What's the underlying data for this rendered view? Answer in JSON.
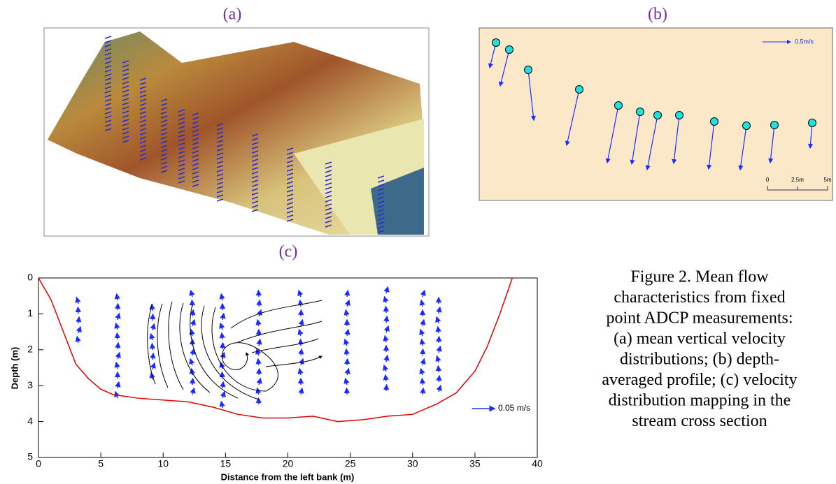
{
  "panels": {
    "a": {
      "label": "(a)"
    },
    "b": {
      "label": "(b)",
      "vector_scale": "0.5m/s",
      "scale_labels": [
        "0",
        "2.5m",
        "5m"
      ]
    },
    "c": {
      "label": "(c)",
      "chart_data": {
        "type": "line",
        "x_label": "Distance from the left bank (m)",
        "y_label": "Depth (m)",
        "xlim": [
          0,
          40
        ],
        "ylim": [
          5,
          0
        ],
        "xticks": [
          0,
          5,
          10,
          15,
          20,
          25,
          30,
          35,
          40
        ],
        "yticks": [
          0,
          1,
          2,
          3,
          4,
          5
        ],
        "vector_scale": "0.05 m/s",
        "series": [
          {
            "color": "#e00000",
            "x": [
              0,
              1,
              2,
              3,
              4,
              5,
              6,
              8,
              10,
              12,
              14,
              16,
              18,
              20,
              22,
              24,
              26,
              28,
              30,
              32,
              33.5,
              35,
              36,
              37,
              38
            ],
            "values": [
              0,
              0.6,
              1.5,
              2.4,
              2.8,
              3.1,
              3.25,
              3.35,
              3.4,
              3.45,
              3.6,
              3.8,
              3.9,
              3.9,
              3.85,
              4.0,
              3.95,
              3.85,
              3.8,
              3.5,
              3.2,
              2.6,
              1.9,
              1.0,
              0
            ]
          }
        ]
      }
    }
  },
  "caption": [
    "Figure 2. Mean flow",
    "characteristics from fixed",
    "point ADCP measurements:",
    "(a) mean vertical velocity",
    "distributions; (b) depth-",
    "averaged profile; (c) velocity",
    "distribution mapping in the",
    "stream cross section"
  ]
}
